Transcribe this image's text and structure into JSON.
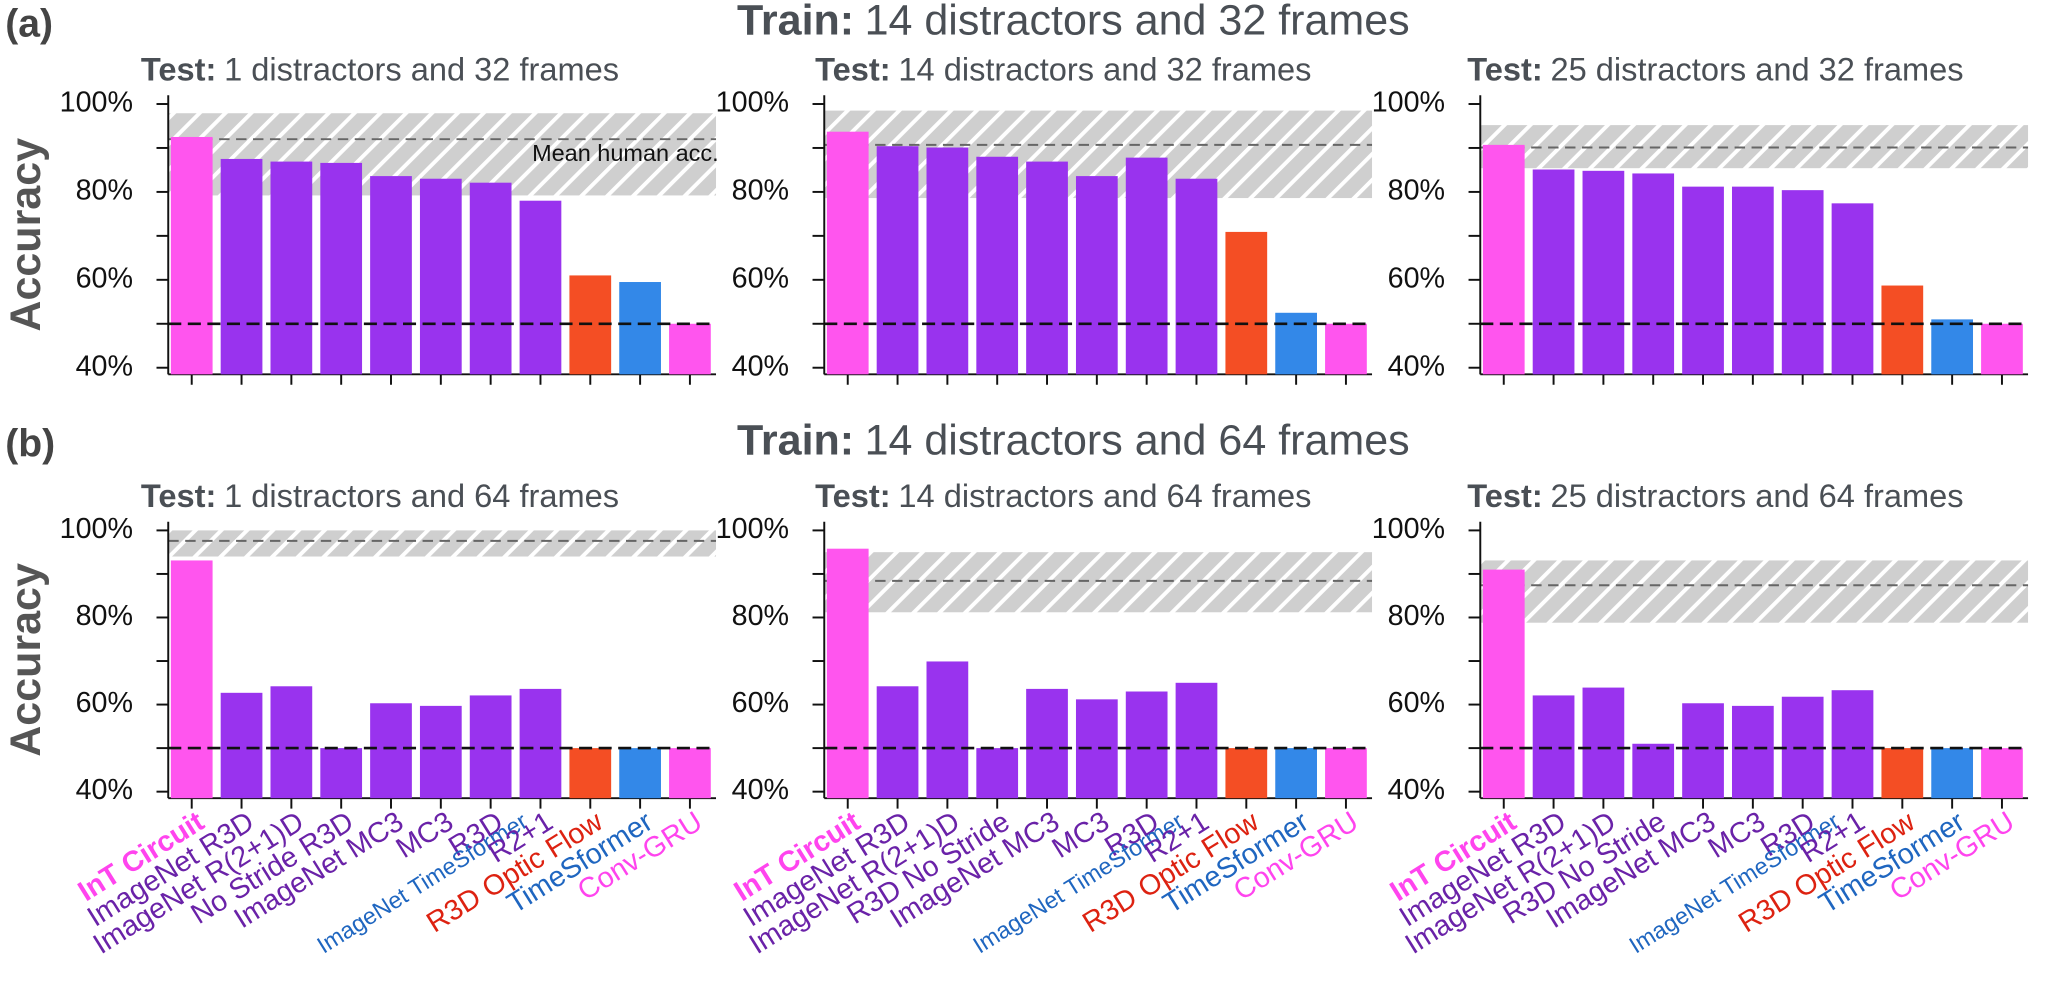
{
  "panels": [
    {
      "label": "(a)",
      "train_label": "Train:",
      "train": "14 distractors and 32 frames"
    },
    {
      "label": "(b)",
      "train_label": "Train:",
      "train": "14 distractors and 64 frames"
    }
  ],
  "chart_data": [
    {
      "type": "bar",
      "title_label": "Test:",
      "title": "1 distractors and 32 frames",
      "ylabel": "Accuracy",
      "ylim": [
        38.5,
        102
      ],
      "yticks": [
        {
          "value": 40,
          "label": "40%"
        },
        {
          "value": 60,
          "label": "60%"
        },
        {
          "value": 80,
          "label": "80%"
        },
        {
          "value": 100,
          "label": "100%"
        }
      ],
      "minor_yticks": [
        50,
        70,
        90
      ],
      "colors": [
        "#ff55ee",
        "#9933ee",
        "#9933ee",
        "#9933ee",
        "#9933ee",
        "#9933ee",
        "#9933ee",
        null,
        "#9933ee",
        "#f44e24",
        "#3388e8",
        "#ff55ee"
      ],
      "values": [
        92.5,
        87.5,
        86.9,
        86.6,
        83.6,
        83,
        82.1,
        null,
        78,
        61,
        59.5,
        50
      ],
      "human_range": [
        79.2,
        97.9
      ],
      "human_mean": 92,
      "chance": 50,
      "annotation": "Mean human acc."
    },
    {
      "type": "bar",
      "title_label": "Test:",
      "title": "14 distractors and 32 frames",
      "ylim": [
        38.5,
        102
      ],
      "yticks": [
        {
          "value": 40,
          "label": "40%"
        },
        {
          "value": 60,
          "label": "60%"
        },
        {
          "value": 80,
          "label": "80%"
        },
        {
          "value": 100,
          "label": "100%"
        }
      ],
      "minor_yticks": [
        50,
        70,
        90
      ],
      "colors": [
        "#ff55ee",
        "#9933ee",
        "#9933ee",
        "#9933ee",
        "#9933ee",
        "#9933ee",
        "#9933ee",
        null,
        "#9933ee",
        "#f44e24",
        "#3388e8",
        "#ff55ee"
      ],
      "values": [
        93.7,
        90.4,
        90.1,
        88,
        86.9,
        83.6,
        87.8,
        null,
        83,
        70.9,
        52.5,
        50
      ],
      "human_range": [
        78.6,
        98.5
      ],
      "human_mean": 90.7,
      "chance": 50
    },
    {
      "type": "bar",
      "title_label": "Test:",
      "title": "25 distractors and 32 frames",
      "ylim": [
        38.5,
        102
      ],
      "yticks": [
        {
          "value": 40,
          "label": "40%"
        },
        {
          "value": 60,
          "label": "60%"
        },
        {
          "value": 80,
          "label": "80%"
        },
        {
          "value": 100,
          "label": "100%"
        }
      ],
      "minor_yticks": [
        50,
        70,
        90
      ],
      "colors": [
        "#ff55ee",
        "#9933ee",
        "#9933ee",
        "#9933ee",
        "#9933ee",
        "#9933ee",
        "#9933ee",
        null,
        "#9933ee",
        "#f44e24",
        "#3388e8",
        "#ff55ee"
      ],
      "values": [
        90.7,
        85.1,
        84.8,
        84.2,
        81.2,
        81.2,
        80.4,
        null,
        77.4,
        58.7,
        51,
        50
      ],
      "human_range": [
        85.4,
        95.2
      ],
      "human_mean": 90.1,
      "chance": 50
    },
    {
      "type": "bar",
      "title_label": "Test:",
      "title": "1 distractors and 64 frames",
      "ylabel": "Accuracy",
      "ylim": [
        38.5,
        102
      ],
      "yticks": [
        {
          "value": 40,
          "label": "40%"
        },
        {
          "value": 60,
          "label": "60%"
        },
        {
          "value": 80,
          "label": "80%"
        },
        {
          "value": 100,
          "label": "100%"
        }
      ],
      "minor_yticks": [
        50,
        70,
        90
      ],
      "categories": [
        "InT Circuit",
        "ImageNet R3D",
        "ImageNet R(2+1)D",
        "No Stride R3D",
        "ImageNet MC3",
        "MC3",
        "R3D",
        "ImageNet TimeSformer",
        "R2+1",
        "R3D Optic Flow",
        "TimeSformer",
        "Conv-GRU"
      ],
      "label_colors": [
        "#ff44ee",
        "#6a22a8",
        "#6a22a8",
        "#6a22a8",
        "#6a22a8",
        "#6a22a8",
        "#6a22a8",
        "#1f66c0",
        "#6a22a8",
        "#dd2211",
        "#1f66c0",
        "#ff44ee"
      ],
      "colors": [
        "#ff55ee",
        "#9933ee",
        "#9933ee",
        "#9933ee",
        "#9933ee",
        "#9933ee",
        "#9933ee",
        null,
        "#9933ee",
        "#f44e24",
        "#3388e8",
        "#ff55ee"
      ],
      "values": [
        93.1,
        62.7,
        64.2,
        50,
        60.3,
        59.7,
        62.1,
        null,
        63.6,
        50,
        50,
        50
      ],
      "human_range": [
        94,
        100
      ],
      "human_mean": 97.6,
      "chance": 50
    },
    {
      "type": "bar",
      "title_label": "Test:",
      "title": "14 distractors and 64 frames",
      "ylim": [
        38.5,
        102
      ],
      "yticks": [
        {
          "value": 40,
          "label": "40%"
        },
        {
          "value": 60,
          "label": "60%"
        },
        {
          "value": 80,
          "label": "80%"
        },
        {
          "value": 100,
          "label": "100%"
        }
      ],
      "minor_yticks": [
        50,
        70,
        90
      ],
      "categories": [
        "InT Circuit",
        "ImageNet R3D",
        "ImageNet R(2+1)D",
        "R3D No Stride",
        "ImageNet MC3",
        "MC3",
        "R3D",
        "ImageNet TimeSformer",
        "R2+1",
        "R3D Optic Flow",
        "TimeSformer",
        "Conv-GRU"
      ],
      "label_colors": [
        "#ff44ee",
        "#6a22a8",
        "#6a22a8",
        "#6a22a8",
        "#6a22a8",
        "#6a22a8",
        "#6a22a8",
        "#1f66c0",
        "#6a22a8",
        "#dd2211",
        "#1f66c0",
        "#ff44ee"
      ],
      "colors": [
        "#ff55ee",
        "#9933ee",
        "#9933ee",
        "#9933ee",
        "#9933ee",
        "#9933ee",
        "#9933ee",
        null,
        "#9933ee",
        "#f44e24",
        "#3388e8",
        "#ff55ee"
      ],
      "values": [
        95.8,
        64.2,
        69.9,
        50,
        63.6,
        61.2,
        63,
        null,
        65,
        50,
        50,
        50
      ],
      "human_range": [
        81.2,
        95
      ],
      "human_mean": 88.4,
      "chance": 50
    },
    {
      "type": "bar",
      "title_label": "Test:",
      "title": "25 distractors and 64 frames",
      "ylim": [
        38.5,
        102
      ],
      "yticks": [
        {
          "value": 40,
          "label": "40%"
        },
        {
          "value": 60,
          "label": "60%"
        },
        {
          "value": 80,
          "label": "80%"
        },
        {
          "value": 100,
          "label": "100%"
        }
      ],
      "minor_yticks": [
        50,
        70,
        90
      ],
      "categories": [
        "InT Circuit",
        "ImageNet R3D",
        "ImageNet R(2+1)D",
        "R3D No Stride",
        "ImageNet MC3",
        "MC3",
        "R3D",
        "ImageNet TimeSformer",
        "R2+1",
        "R3D Optic Flow",
        "TimeSformer",
        "Conv-GRU"
      ],
      "label_colors": [
        "#ff44ee",
        "#6a22a8",
        "#6a22a8",
        "#6a22a8",
        "#6a22a8",
        "#6a22a8",
        "#6a22a8",
        "#1f66c0",
        "#6a22a8",
        "#dd2211",
        "#1f66c0",
        "#ff44ee"
      ],
      "colors": [
        "#ff55ee",
        "#9933ee",
        "#9933ee",
        "#9933ee",
        "#9933ee",
        "#9933ee",
        "#9933ee",
        null,
        "#9933ee",
        "#f44e24",
        "#3388e8",
        "#ff55ee"
      ],
      "values": [
        91,
        62.1,
        63.9,
        51,
        60.3,
        59.7,
        61.8,
        null,
        63.3,
        50,
        50,
        50
      ],
      "human_range": [
        78.8,
        93.1
      ],
      "human_mean": 87.4,
      "chance": 50
    }
  ]
}
